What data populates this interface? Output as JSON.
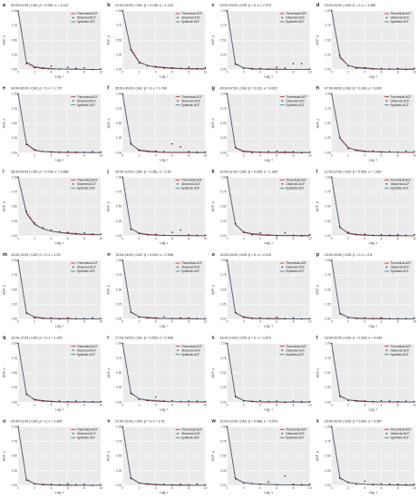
{
  "colors": {
    "theoretical": "#d7191c",
    "observed": "#000000",
    "synthetic": "#2a7f9a",
    "panel_bg": "#ebebeb",
    "grid": "#ffffff"
  },
  "chart_data": {
    "type": "line",
    "xlabel": "Lag, τ",
    "ylabel": "ACF, ρ",
    "xlim": [
      0,
      10
    ],
    "ylim": [
      0,
      1
    ],
    "x_ticks": [
      0,
      2,
      4,
      6,
      8,
      10
    ],
    "y_ticks": [
      "0.00",
      "0.25",
      "0.50",
      "0.75",
      "1.00"
    ],
    "legend": [
      "Theoretical ACF",
      "Observed ACF",
      "Synthetic ACF"
    ],
    "legend_position": "top-right",
    "panels": [
      {
        "label": "a",
        "title": "00:00-01:00 | CAS: β = 0.391, κ = 4.122",
        "theoretical": [
          1,
          0.12,
          0.04,
          0.02,
          0.01,
          0.01,
          0.005,
          0.004,
          0.003,
          0.002,
          0.002
        ],
        "synthetic": [
          1,
          0.13,
          0.05,
          0.03,
          0.02,
          0.01,
          0.01,
          0.01,
          0.005,
          0.005,
          0.005
        ],
        "observed": [
          1,
          0.1,
          0.03,
          0.02,
          0.06,
          0.01,
          0.04,
          0.02,
          0.03,
          0.0,
          0.01
        ]
      },
      {
        "label": "b",
        "title": "01:00-02:00 | CAS: β = 0.138, κ = 1.133",
        "theoretical": [
          1,
          0.35,
          0.13,
          0.07,
          0.04,
          0.03,
          0.02,
          0.015,
          0.01,
          0.01,
          0.01
        ],
        "synthetic": [
          1,
          0.33,
          0.12,
          0.07,
          0.05,
          0.04,
          0.03,
          0.02,
          0.02,
          0.02,
          0.02
        ],
        "observed": [
          1,
          0.34,
          0.11,
          0.06,
          0.05,
          0.02,
          0.03,
          0.02,
          0.04,
          0.01,
          0.03
        ]
      },
      {
        "label": "c",
        "title": "02:00-03:00 | CAS: β = 0, κ = 2.573",
        "theoretical": [
          1,
          0.1,
          0.03,
          0.01,
          0.005,
          0.003,
          0.002,
          0.001,
          0.001,
          0.001,
          0.001
        ],
        "synthetic": [
          1,
          0.09,
          0.03,
          0.02,
          0.01,
          0.01,
          0.01,
          0.005,
          0.005,
          0.005,
          0.005
        ],
        "observed": [
          1,
          0.09,
          0.02,
          0.01,
          0.02,
          0.01,
          0.04,
          0.02,
          0.1,
          0.1,
          0.01
        ]
      },
      {
        "label": "d",
        "title": "03:00-04:00 | CAS: β = 0, κ = 1.285",
        "theoretical": [
          1,
          0.22,
          0.07,
          0.03,
          0.02,
          0.01,
          0.005,
          0.005,
          0.004,
          0.003,
          0.002
        ],
        "synthetic": [
          1,
          0.2,
          0.07,
          0.04,
          0.03,
          0.02,
          0.01,
          0.01,
          0.01,
          0.01,
          0.01
        ],
        "observed": [
          1,
          0.24,
          0.06,
          0.02,
          0.03,
          0.01,
          0.02,
          0.01,
          0.02,
          0.0,
          0.02
        ]
      },
      {
        "label": "e",
        "title": "04:00-05:00 | CAS: β = 0, κ = 1.737",
        "theoretical": [
          1,
          0.15,
          0.04,
          0.02,
          0.01,
          0.005,
          0.003,
          0.002,
          0.002,
          0.001,
          0.001
        ],
        "synthetic": [
          1,
          0.16,
          0.05,
          0.02,
          0.02,
          0.01,
          0.01,
          0.01,
          0.005,
          0.005,
          0.005
        ],
        "observed": [
          1,
          0.14,
          0.05,
          0.02,
          0.01,
          0.01,
          0.02,
          0.01,
          0.01,
          0.02,
          0.01
        ]
      },
      {
        "label": "f",
        "title": "05:00-06:00 | CAS: β = 0, κ = 1.746",
        "theoretical": [
          1,
          0.15,
          0.04,
          0.02,
          0.01,
          0.005,
          0.003,
          0.002,
          0.002,
          0.001,
          0.001
        ],
        "synthetic": [
          1,
          0.14,
          0.05,
          0.03,
          0.02,
          0.01,
          0.01,
          0.01,
          0.01,
          0.005,
          0.005
        ],
        "observed": [
          1,
          0.16,
          0.04,
          0.02,
          0.03,
          0.02,
          0.15,
          0.1,
          0.02,
          0.01,
          0.01
        ]
      },
      {
        "label": "g",
        "title": "06:00-07:00 | CAS: β = 0.031, κ = 6.921",
        "theoretical": [
          1,
          0.08,
          0.02,
          0.01,
          0.005,
          0.003,
          0.002,
          0.001,
          0.001,
          0.001,
          0.001
        ],
        "synthetic": [
          1,
          0.09,
          0.03,
          0.02,
          0.01,
          0.01,
          0.01,
          0.02,
          0.01,
          0.005,
          0.005
        ],
        "observed": [
          1,
          0.09,
          0.02,
          0.0,
          0.01,
          0.02,
          0.03,
          0.01,
          0.02,
          0.0,
          0.01
        ]
      },
      {
        "label": "h",
        "title": "07:00-08:00 | CAS: β = 0.343, κ = 3.092",
        "theoretical": [
          1,
          0.25,
          0.09,
          0.04,
          0.02,
          0.015,
          0.01,
          0.008,
          0.006,
          0.005,
          0.004
        ],
        "synthetic": [
          1,
          0.24,
          0.08,
          0.05,
          0.03,
          0.02,
          0.02,
          0.01,
          0.01,
          0.01,
          0.01
        ],
        "observed": [
          1,
          0.26,
          0.07,
          0.04,
          0.02,
          0.03,
          0.01,
          0.02,
          0.01,
          0.03,
          0.02
        ]
      },
      {
        "label": "i",
        "title": "08:00-09:00 | CAS: β = 0.703, κ = 4.868",
        "theoretical": [
          1,
          0.4,
          0.2,
          0.12,
          0.08,
          0.06,
          0.04,
          0.03,
          0.025,
          0.02,
          0.02
        ],
        "synthetic": [
          1,
          0.38,
          0.19,
          0.12,
          0.08,
          0.06,
          0.05,
          0.04,
          0.03,
          0.03,
          0.02
        ],
        "observed": [
          1,
          0.42,
          0.22,
          0.14,
          0.1,
          0.07,
          0.06,
          0.04,
          0.05,
          0.03,
          0.03
        ]
      },
      {
        "label": "j",
        "title": "09:00-10:00 | CAS: β = 0.361, κ = 2.67",
        "theoretical": [
          1,
          0.13,
          0.04,
          0.02,
          0.01,
          0.007,
          0.005,
          0.004,
          0.003,
          0.002,
          0.002
        ],
        "synthetic": [
          1,
          0.12,
          0.05,
          0.03,
          0.02,
          0.01,
          0.01,
          0.01,
          0.01,
          0.005,
          0.005
        ],
        "observed": [
          1,
          0.11,
          0.04,
          0.02,
          0.03,
          0.01,
          0.06,
          0.1,
          0.02,
          0.01,
          0.01
        ]
      },
      {
        "label": "k",
        "title": "10:00-11:00 | CAS: β = 0.035, κ = 1.364",
        "theoretical": [
          1,
          0.2,
          0.06,
          0.03,
          0.015,
          0.008,
          0.005,
          0.004,
          0.003,
          0.002,
          0.002
        ],
        "synthetic": [
          1,
          0.19,
          0.07,
          0.04,
          0.03,
          0.02,
          0.01,
          0.01,
          0.01,
          0.01,
          0.01
        ],
        "observed": [
          1,
          0.21,
          0.06,
          0.02,
          0.05,
          0.01,
          0.0,
          0.05,
          0.01,
          0.0,
          0.02
        ]
      },
      {
        "label": "l",
        "title": "11:00-12:00 | CAS: β = 0.063, κ = 1.657",
        "theoretical": [
          1,
          0.15,
          0.04,
          0.02,
          0.01,
          0.005,
          0.003,
          0.002,
          0.002,
          0.001,
          0.001
        ],
        "synthetic": [
          1,
          0.14,
          0.05,
          0.03,
          0.02,
          0.01,
          0.01,
          0.01,
          0.01,
          0.005,
          0.005
        ],
        "observed": [
          1,
          0.15,
          0.06,
          0.02,
          0.03,
          0.01,
          0.02,
          0.01,
          0.02,
          0.01,
          0.02
        ]
      },
      {
        "label": "m",
        "title": "12:00-13:00 | CAS: β = 0, κ = 2.29",
        "theoretical": [
          1,
          0.11,
          0.03,
          0.01,
          0.005,
          0.003,
          0.002,
          0.001,
          0.001,
          0.001,
          0.001
        ],
        "synthetic": [
          1,
          0.1,
          0.04,
          0.02,
          0.01,
          0.01,
          0.01,
          0.005,
          0.005,
          0.005,
          0.005
        ],
        "observed": [
          1,
          0.1,
          0.02,
          0.01,
          0.02,
          0.0,
          0.02,
          0.01,
          0.01,
          0.02,
          0.01
        ]
      },
      {
        "label": "n",
        "title": "13:00-14:00 | CAS: β = 0.324, κ = 2.998",
        "theoretical": [
          1,
          0.12,
          0.04,
          0.02,
          0.01,
          0.007,
          0.005,
          0.004,
          0.003,
          0.002,
          0.002
        ],
        "synthetic": [
          1,
          0.11,
          0.04,
          0.03,
          0.02,
          0.01,
          0.01,
          0.01,
          0.01,
          0.005,
          0.005
        ],
        "observed": [
          1,
          0.12,
          0.03,
          0.02,
          0.02,
          0.04,
          0.01,
          0.02,
          0.02,
          0.01,
          0.01
        ]
      },
      {
        "label": "o",
        "title": "14:00-15:00 | CAS: β = 0, κ = 2.219",
        "theoretical": [
          1,
          0.11,
          0.03,
          0.01,
          0.005,
          0.003,
          0.002,
          0.001,
          0.001,
          0.001,
          0.001
        ],
        "synthetic": [
          1,
          0.1,
          0.04,
          0.02,
          0.01,
          0.01,
          0.01,
          0.005,
          0.005,
          0.005,
          0.005
        ],
        "observed": [
          1,
          0.11,
          0.03,
          0.01,
          0.02,
          0.01,
          0.03,
          0.01,
          0.02,
          0.0,
          0.01
        ]
      },
      {
        "label": "p",
        "title": "15:00-16:00 | CAS: β = 0, κ = 2.8",
        "theoretical": [
          1,
          0.1,
          0.03,
          0.01,
          0.005,
          0.003,
          0.002,
          0.001,
          0.001,
          0.001,
          0.001
        ],
        "synthetic": [
          1,
          0.09,
          0.03,
          0.02,
          0.01,
          0.01,
          0.01,
          0.005,
          0.005,
          0.005,
          0.005
        ],
        "observed": [
          1,
          0.09,
          0.02,
          0.01,
          0.02,
          0.01,
          0.02,
          0.01,
          0.01,
          0.01,
          0.02
        ]
      },
      {
        "label": "q",
        "title": "16:00-17:00 | CAS: β = 0, κ = 1.925",
        "theoretical": [
          1,
          0.14,
          0.04,
          0.02,
          0.01,
          0.005,
          0.003,
          0.002,
          0.002,
          0.001,
          0.001
        ],
        "synthetic": [
          1,
          0.13,
          0.05,
          0.03,
          0.02,
          0.01,
          0.01,
          0.01,
          0.005,
          0.005,
          0.005
        ],
        "observed": [
          1,
          0.14,
          0.04,
          0.02,
          0.01,
          0.02,
          0.01,
          0.02,
          0.01,
          0.01,
          0.01
        ]
      },
      {
        "label": "r",
        "title": "17:00-18:00 | CAS: β = 0.503, κ = 2.968",
        "theoretical": [
          1,
          0.16,
          0.06,
          0.03,
          0.02,
          0.012,
          0.008,
          0.006,
          0.005,
          0.004,
          0.003
        ],
        "synthetic": [
          1,
          0.15,
          0.06,
          0.04,
          0.03,
          0.02,
          0.01,
          0.01,
          0.01,
          0.01,
          0.01
        ],
        "observed": [
          1,
          0.15,
          0.05,
          0.03,
          0.09,
          0.02,
          0.03,
          0.01,
          0.02,
          0.02,
          0.01
        ]
      },
      {
        "label": "s",
        "title": "18:00-19:00 | CAS: β = 0, κ = 2.873",
        "theoretical": [
          1,
          0.1,
          0.03,
          0.01,
          0.005,
          0.003,
          0.002,
          0.001,
          0.001,
          0.001,
          0.001
        ],
        "synthetic": [
          1,
          0.09,
          0.03,
          0.02,
          0.01,
          0.01,
          0.01,
          0.005,
          0.005,
          0.005,
          0.005
        ],
        "observed": [
          1,
          0.1,
          0.02,
          0.01,
          0.03,
          0.01,
          0.02,
          0.0,
          0.02,
          0.01,
          0.01
        ]
      },
      {
        "label": "t",
        "title": "19:00-20:00 | CAS: β = 0.393, κ = 4.439",
        "theoretical": [
          1,
          0.11,
          0.04,
          0.02,
          0.01,
          0.007,
          0.005,
          0.004,
          0.003,
          0.002,
          0.002
        ],
        "synthetic": [
          1,
          0.1,
          0.04,
          0.03,
          0.02,
          0.01,
          0.01,
          0.01,
          0.01,
          0.005,
          0.005
        ],
        "observed": [
          1,
          0.1,
          0.03,
          0.02,
          0.02,
          0.01,
          0.03,
          0.02,
          0.01,
          0.02,
          0.01
        ]
      },
      {
        "label": "u",
        "title": "20:00-21:00 | CAS: β = 0, κ = 2.806",
        "theoretical": [
          1,
          0.1,
          0.03,
          0.01,
          0.005,
          0.003,
          0.002,
          0.001,
          0.001,
          0.001,
          0.001
        ],
        "synthetic": [
          1,
          0.09,
          0.03,
          0.02,
          0.01,
          0.01,
          0.01,
          0.005,
          0.005,
          0.005,
          0.005
        ],
        "observed": [
          1,
          0.09,
          0.02,
          0.01,
          0.02,
          0.01,
          0.03,
          0.01,
          0.02,
          0.0,
          0.01
        ]
      },
      {
        "label": "v",
        "title": "21:00-22:00 | CAS: β = 0, κ = 2.02",
        "theoretical": [
          1,
          0.13,
          0.04,
          0.02,
          0.01,
          0.005,
          0.003,
          0.002,
          0.002,
          0.001,
          0.001
        ],
        "synthetic": [
          1,
          0.12,
          0.04,
          0.03,
          0.02,
          0.01,
          0.01,
          0.01,
          0.005,
          0.005,
          0.005
        ],
        "observed": [
          1,
          0.12,
          0.04,
          0.02,
          0.01,
          0.02,
          0.01,
          0.02,
          0.01,
          0.02,
          0.01
        ]
      },
      {
        "label": "w",
        "title": "22:00-23:00 | CAS: β = 0.688, κ = 5.579",
        "theoretical": [
          1,
          0.12,
          0.05,
          0.03,
          0.02,
          0.014,
          0.01,
          0.008,
          0.006,
          0.005,
          0.004
        ],
        "synthetic": [
          1,
          0.11,
          0.05,
          0.03,
          0.02,
          0.02,
          0.01,
          0.01,
          0.01,
          0.01,
          0.01
        ],
        "observed": [
          1,
          0.12,
          0.04,
          0.03,
          0.02,
          0.06,
          0.01,
          0.16,
          0.02,
          0.01,
          0.02
        ]
      },
      {
        "label": "x",
        "title": "23:00-00:00 | CAS: β = 0.642, κ = 4.587",
        "theoretical": [
          1,
          0.13,
          0.05,
          0.03,
          0.02,
          0.013,
          0.009,
          0.007,
          0.005,
          0.004,
          0.003
        ],
        "synthetic": [
          1,
          0.12,
          0.05,
          0.03,
          0.02,
          0.02,
          0.01,
          0.01,
          0.01,
          0.01,
          0.01
        ],
        "observed": [
          1,
          0.12,
          0.05,
          0.02,
          0.07,
          0.01,
          0.03,
          0.02,
          0.02,
          0.01,
          0.02
        ]
      }
    ]
  }
}
